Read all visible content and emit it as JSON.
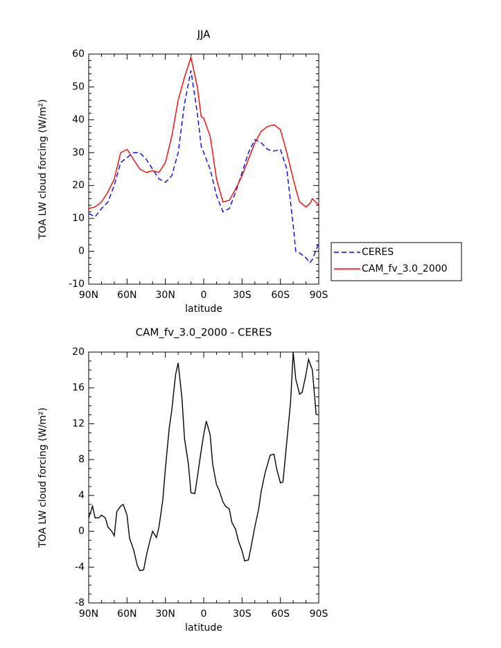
{
  "chart_data": [
    {
      "type": "line",
      "title": "JJA",
      "x_label": "latitude",
      "y_label": "TOA LW cloud forcing (W/m²)",
      "x": [
        90,
        85,
        80,
        75,
        70,
        65,
        60,
        55,
        50,
        45,
        40,
        35,
        30,
        25,
        20,
        15,
        10,
        5,
        2,
        0,
        -5,
        -10,
        -15,
        -20,
        -25,
        -30,
        -35,
        -40,
        -45,
        -50,
        -55,
        -60,
        -65,
        -70,
        -72,
        -75,
        -80,
        -83,
        -85,
        -90
      ],
      "series": [
        {
          "name": "CERES",
          "color": "#0000ff",
          "style": "dashed",
          "values": [
            11.5,
            10.5,
            13,
            15,
            20,
            27,
            28.5,
            30,
            30,
            28,
            25,
            22,
            21,
            23,
            30,
            45,
            55,
            42,
            32,
            30,
            25,
            17,
            12,
            13,
            18,
            24,
            30,
            34,
            33,
            31,
            30.5,
            31,
            25,
            8,
            0,
            -0.5,
            -2,
            -3.5,
            -2.5,
            2.5
          ]
        },
        {
          "name": "CAM_fv_3.0_2000",
          "color": "#ff0000",
          "style": "solid",
          "values": [
            13,
            13.5,
            15,
            18,
            22,
            30,
            31,
            28,
            25,
            24,
            24.5,
            24,
            27,
            35,
            46,
            53,
            59,
            50,
            41,
            40.5,
            35,
            22,
            15,
            15.5,
            19,
            23,
            28,
            33,
            36.5,
            38,
            38.5,
            37,
            30,
            22,
            19,
            15,
            13.5,
            14.5,
            16,
            14
          ]
        }
      ],
      "xlim": [
        90,
        -90
      ],
      "xticks": [
        {
          "value": 90,
          "label": "90N"
        },
        {
          "value": 60,
          "label": "60N"
        },
        {
          "value": 30,
          "label": "30N"
        },
        0,
        {
          "value": -30,
          "label": "30S"
        },
        {
          "value": -60,
          "label": "60S"
        },
        {
          "value": -90,
          "label": "90S"
        }
      ],
      "ylim": [
        -10,
        60
      ],
      "yticks": [
        -10,
        0,
        10,
        20,
        30,
        40,
        50,
        60
      ],
      "legend": "right"
    },
    {
      "type": "line",
      "title": "CAM_fv_3.0_2000 - CERES",
      "x_label": "latitude",
      "y_label": "TOA LW cloud forcing (W/m²)",
      "x": [
        90,
        87,
        85,
        82,
        80,
        77,
        75,
        72,
        70,
        68,
        65,
        63,
        60,
        58,
        55,
        52,
        50,
        47,
        45,
        42,
        40,
        37,
        35,
        32,
        30,
        27,
        25,
        22,
        20,
        17,
        15,
        12,
        10,
        7,
        5,
        2,
        0,
        -2,
        -5,
        -7,
        -10,
        -12,
        -15,
        -17,
        -20,
        -22,
        -25,
        -27,
        -30,
        -32,
        -35,
        -37,
        -40,
        -43,
        -45,
        -48,
        -50,
        -52,
        -55,
        -57,
        -60,
        -62,
        -65,
        -68,
        -70,
        -72,
        -75,
        -77,
        -80,
        -82,
        -85,
        -88
      ],
      "series": [
        {
          "color": "#000000",
          "style": "solid",
          "values": [
            1.5,
            2.8,
            1.5,
            1.5,
            1.8,
            1.5,
            0.5,
            0,
            -0.5,
            2.2,
            2.8,
            3,
            1.8,
            -0.8,
            -2,
            -3.8,
            -4.4,
            -4.3,
            -2.8,
            -1,
            0,
            -0.7,
            0.5,
            3.5,
            7,
            11.5,
            13.5,
            17.5,
            18.8,
            14.8,
            10.3,
            7.5,
            4.3,
            4.2,
            6,
            9,
            10.8,
            12.3,
            10.8,
            7.5,
            5.2,
            4.6,
            3.3,
            2.8,
            2.5,
            1,
            0.2,
            -1,
            -2.2,
            -3.3,
            -3.2,
            -1.8,
            0.5,
            2.5,
            4.5,
            6.5,
            7.5,
            8.5,
            8.6,
            7,
            5.4,
            5.5,
            10,
            14.5,
            20,
            17,
            15.3,
            15.5,
            17.5,
            19.2,
            18,
            13
          ]
        }
      ],
      "xlim": [
        90,
        -90
      ],
      "xticks": [
        {
          "value": 90,
          "label": "90N"
        },
        {
          "value": 60,
          "label": "60N"
        },
        {
          "value": 30,
          "label": "30N"
        },
        0,
        {
          "value": -30,
          "label": "30S"
        },
        {
          "value": -60,
          "label": "60S"
        },
        {
          "value": -90,
          "label": "90S"
        }
      ],
      "ylim": [
        -8,
        20
      ],
      "yticks": [
        -8,
        -4,
        0,
        4,
        8,
        12,
        16,
        20
      ]
    }
  ]
}
